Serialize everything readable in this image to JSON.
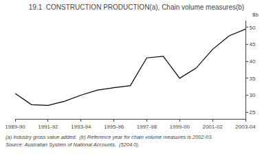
{
  "chart_data": {
    "type": "line",
    "title": "19.1  CONSTRUCTION PRODUCTION(a), Chain volume measures(b)",
    "ylabel": "$b",
    "annotations": [
      "(a) Industry gross value added.  (b) Reference year for chain volume measures is 2002-03.",
      "Source: Australian System of National Accounts,  (5204.0)."
    ],
    "categories": [
      "1989-90",
      null,
      "1991-92",
      null,
      "1993-94",
      null,
      "1995-96",
      null,
      "1997-98",
      null,
      "1999-00",
      null,
      "2001-02",
      null,
      "2003-04"
    ],
    "values": [
      30.5,
      27.2,
      27.0,
      28.2,
      30.0,
      31.5,
      32.2,
      32.8,
      41.0,
      41.5,
      35.0,
      38.0,
      43.5,
      47.5,
      49.5
    ],
    "color": "#000000",
    "ylim": [
      23,
      52
    ],
    "yticks": [
      25,
      30,
      35,
      40,
      45,
      50
    ],
    "grid": false
  }
}
